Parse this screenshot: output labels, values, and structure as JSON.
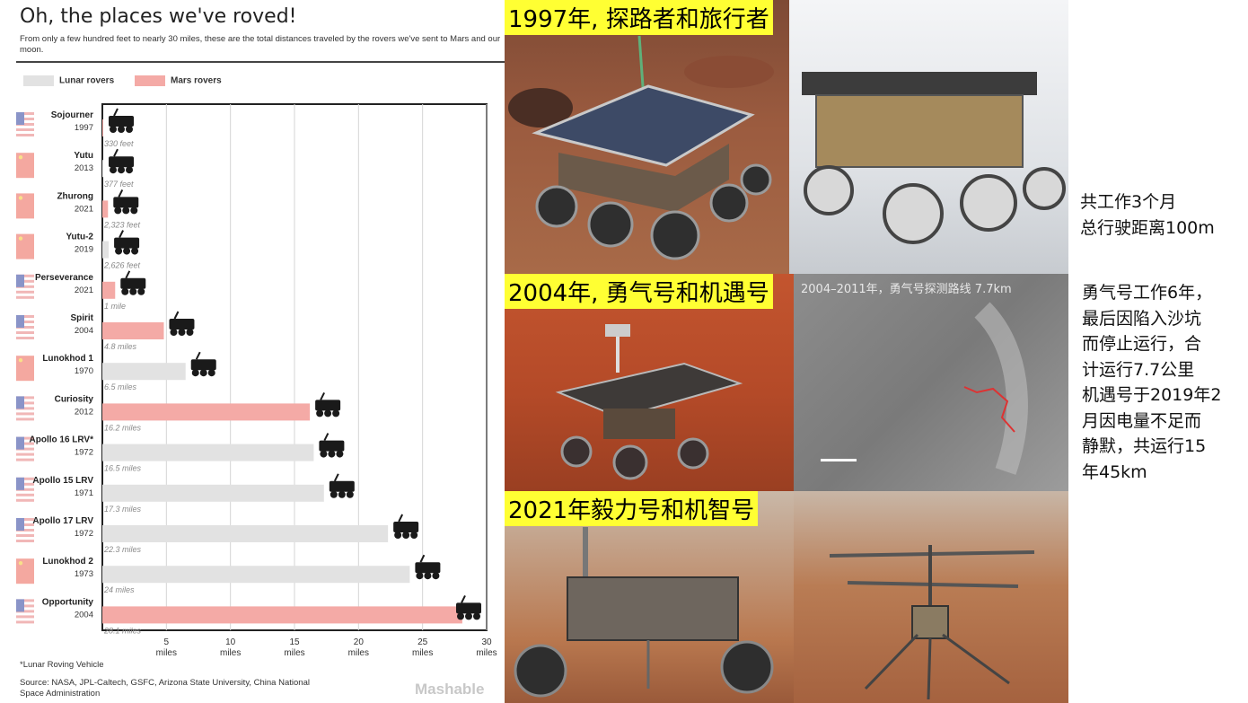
{
  "header": {
    "title": "Oh, the places we've roved!",
    "subtitle": "From only a few hundred feet to nearly 30 miles, these are the total distances traveled by the rovers we've sent to Mars and our moon."
  },
  "legend": {
    "lunar_label": "Lunar rovers",
    "mars_label": "Mars rovers"
  },
  "colors": {
    "lunar": "#e2e2e2",
    "mars": "#f4aaa6",
    "highlight": "#ffff33"
  },
  "chart_data": {
    "type": "bar",
    "orientation": "horizontal",
    "x_unit": "miles",
    "xlim": [
      0,
      30
    ],
    "x_ticks": [
      5,
      10,
      15,
      20,
      25,
      30
    ],
    "rows": [
      {
        "name": "Sojourner",
        "year": "1997",
        "value": 0.0625,
        "label": "330 feet",
        "group": "mars",
        "flag": "us"
      },
      {
        "name": "Yutu",
        "year": "2013",
        "value": 0.0714,
        "label": "377 feet",
        "group": "lunar",
        "flag": "cn"
      },
      {
        "name": "Zhurong",
        "year": "2021",
        "value": 0.44,
        "label": "2,323 feet",
        "group": "mars",
        "flag": "cn"
      },
      {
        "name": "Yutu-2",
        "year": "2019",
        "value": 0.497,
        "label": "2,626 feet",
        "group": "lunar",
        "flag": "cn"
      },
      {
        "name": "Perseverance",
        "year": "2021",
        "value": 1,
        "label": "1 mile",
        "group": "mars",
        "flag": "us"
      },
      {
        "name": "Spirit",
        "year": "2004",
        "value": 4.8,
        "label": "4.8 miles",
        "group": "mars",
        "flag": "us"
      },
      {
        "name": "Lunokhod 1",
        "year": "1970",
        "value": 6.5,
        "label": "6.5 miles",
        "group": "lunar",
        "flag": "ussr"
      },
      {
        "name": "Curiosity",
        "year": "2012",
        "value": 16.2,
        "label": "16.2 miles",
        "group": "mars",
        "flag": "us"
      },
      {
        "name": "Apollo 16 LRV*",
        "year": "1972",
        "value": 16.5,
        "label": "16.5 miles",
        "group": "lunar",
        "flag": "us"
      },
      {
        "name": "Apollo 15 LRV",
        "year": "1971",
        "value": 17.3,
        "label": "17.3 miles",
        "group": "lunar",
        "flag": "us"
      },
      {
        "name": "Apollo 17 LRV",
        "year": "1972",
        "value": 22.3,
        "label": "22.3 miles",
        "group": "lunar",
        "flag": "us"
      },
      {
        "name": "Lunokhod 2",
        "year": "1973",
        "value": 24,
        "label": "24 miles",
        "group": "lunar",
        "flag": "ussr"
      },
      {
        "name": "Opportunity",
        "year": "2004",
        "value": 28.1,
        "label": "28.1 miles",
        "group": "mars",
        "flag": "us"
      }
    ]
  },
  "footnote": "*Lunar Roving Vehicle",
  "source": "Source: NASA, JPL-Caltech, GSFC, Arizona State University, China National Space Administration",
  "brand": "Mashable",
  "photos": {
    "label_1997": "1997年, 探路者和旅行者",
    "label_2004": "2004年, 勇气号和机遇号",
    "label_2021": "2021年毅力号和机智号",
    "map_label": "2004–2011年，勇气号探测路线 7.7km"
  },
  "notes": {
    "note_1": [
      "共工作3个月",
      "总行驶距离100m"
    ],
    "note_2": [
      "勇气号工作6年，",
      "最后因陷入沙坑",
      "而停止运行，合",
      "计运行7.7公里",
      "机遇号于2019年2",
      "月因电量不足而",
      "静默，共运行15",
      "年45km"
    ]
  }
}
